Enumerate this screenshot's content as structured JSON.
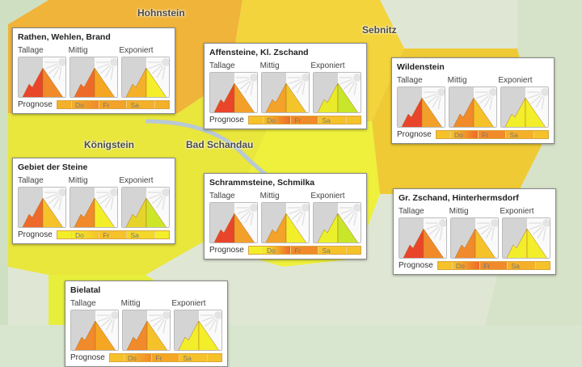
{
  "map": {
    "places": [
      "Hohnstein",
      "Sebnitz",
      "Königstein",
      "Bad Schandau"
    ]
  },
  "legend": {
    "tallage": "Tallage",
    "mittig": "Mittig",
    "exponiert": "Exponiert",
    "prognose": "Prognose",
    "days": [
      "Do",
      "Fr",
      "Sa"
    ]
  },
  "regions": [
    {
      "name": "Rathen, Wehlen, Brand",
      "icons": [
        [
          "#e8452a",
          "#f08a2a"
        ],
        [
          "#ee6a2a",
          "#f5a623"
        ],
        [
          "#f5b02a",
          "#f5ee2a"
        ]
      ],
      "forecast": [
        "#f3b02a",
        "#f08a2a",
        "#f3a22a",
        "#f3b02a",
        "#f3b02a"
      ]
    },
    {
      "name": "Affensteine, Kl. Zschand",
      "icons": [
        [
          "#e8452a",
          "#f2a02a"
        ],
        [
          "#f3a22a",
          "#f3c52a"
        ],
        [
          "#e8ea2a",
          "#c8e62a"
        ]
      ],
      "forecast": [
        "#f5c22a",
        "#ee6a2a",
        "#f08a2a",
        "#f5c22a",
        "#f5c22a"
      ]
    },
    {
      "name": "Wildenstein",
      "icons": [
        [
          "#e8452a",
          "#f2a02a"
        ],
        [
          "#f08a2a",
          "#f5c22a"
        ],
        [
          "#f2ee2a",
          "#f2ee2a"
        ]
      ],
      "forecast": [
        "#f5c22a",
        "#ee6a2a",
        "#f08a2a",
        "#f5b02a",
        "#f5c22a"
      ]
    },
    {
      "name": "Gebiet der Steine",
      "icons": [
        [
          "#ee6a2a",
          "#f5c22a"
        ],
        [
          "#f08a2a",
          "#f3ee2a"
        ],
        [
          "#e6d42a",
          "#cde62a"
        ]
      ],
      "forecast": [
        "#f3ee2a",
        "#f5c22a",
        "#f5c22a",
        "#f3d82a",
        "#f3ee2a"
      ]
    },
    {
      "name": "Schrammsteine, Schmilka",
      "icons": [
        [
          "#e8452a",
          "#f2a02a"
        ],
        [
          "#f3a22a",
          "#f3ee2a"
        ],
        [
          "#eaf02a",
          "#c8e62a"
        ]
      ],
      "forecast": [
        "#f3ee2a",
        "#ee6a2a",
        "#f08a2a",
        "#f5c22a",
        "#f5c22a"
      ]
    },
    {
      "name": "Gr. Zschand, Hinterhermsdorf",
      "icons": [
        [
          "#e8452a",
          "#f08a2a"
        ],
        [
          "#f08a2a",
          "#f5c22a"
        ],
        [
          "#f2ee2a",
          "#f2ee2a"
        ]
      ],
      "forecast": [
        "#f5c22a",
        "#ee6a2a",
        "#f08a2a",
        "#f5b02a",
        "#f5c22a"
      ]
    },
    {
      "name": "Bielatal",
      "icons": [
        [
          "#f08a2a",
          "#f5a623"
        ],
        [
          "#f08a2a",
          "#f5c22a"
        ],
        [
          "#f2ee2a",
          "#f2ee2a"
        ]
      ],
      "forecast": [
        "#f5c22a",
        "#f08a2a",
        "#f5a623",
        "#f5c22a",
        "#f5c22a"
      ]
    }
  ]
}
